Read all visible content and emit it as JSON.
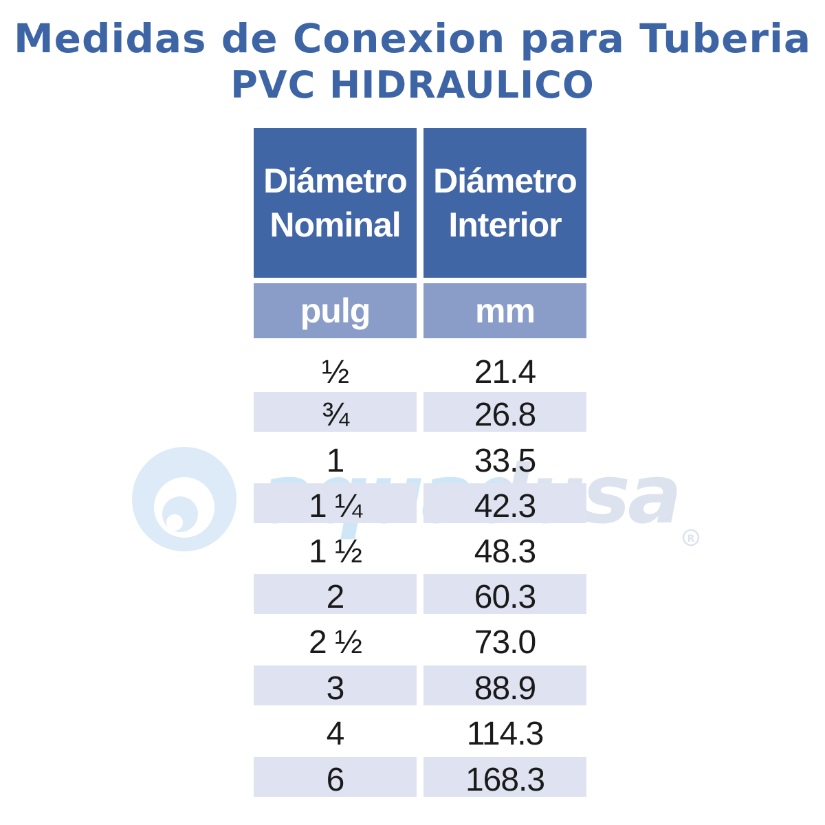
{
  "title": {
    "line1": "Medidas de Conexion para Tuberia",
    "line2": "PVC HIDRAULICO"
  },
  "table": {
    "headers": [
      {
        "line1": "Diámetro",
        "line2": "Nominal",
        "unit": "pulg"
      },
      {
        "line1": "Diámetro",
        "line2": "Interior",
        "unit": "mm"
      }
    ],
    "rows": [
      {
        "nominal": "½",
        "interior": "21.4",
        "shaded": false
      },
      {
        "nominal": "¾",
        "interior": "26.8",
        "shaded": true
      },
      {
        "nominal": "1",
        "interior": "33.5",
        "shaded": false
      },
      {
        "nominal": "1 ¼",
        "interior": "42.3",
        "shaded": true
      },
      {
        "nominal": "1 ½",
        "interior": "48.3",
        "shaded": false
      },
      {
        "nominal": "2",
        "interior": "60.3",
        "shaded": true
      },
      {
        "nominal": "2 ½",
        "interior": "73.0",
        "shaded": false
      },
      {
        "nominal": "3",
        "interior": "88.9",
        "shaded": true
      },
      {
        "nominal": "4",
        "interior": "114.3",
        "shaded": false
      },
      {
        "nominal": "6",
        "interior": "168.3",
        "shaded": true
      }
    ]
  },
  "watermark": {
    "text": "aquadusa",
    "mark": "®",
    "colors": {
      "left": "#cfe6f6",
      "right": "#dde3ee"
    }
  },
  "colors": {
    "title": "#3d65a6",
    "header_bg": "#4166a5",
    "unit_bg": "#8a9dc8",
    "row_shade": "#dfe3f1"
  }
}
